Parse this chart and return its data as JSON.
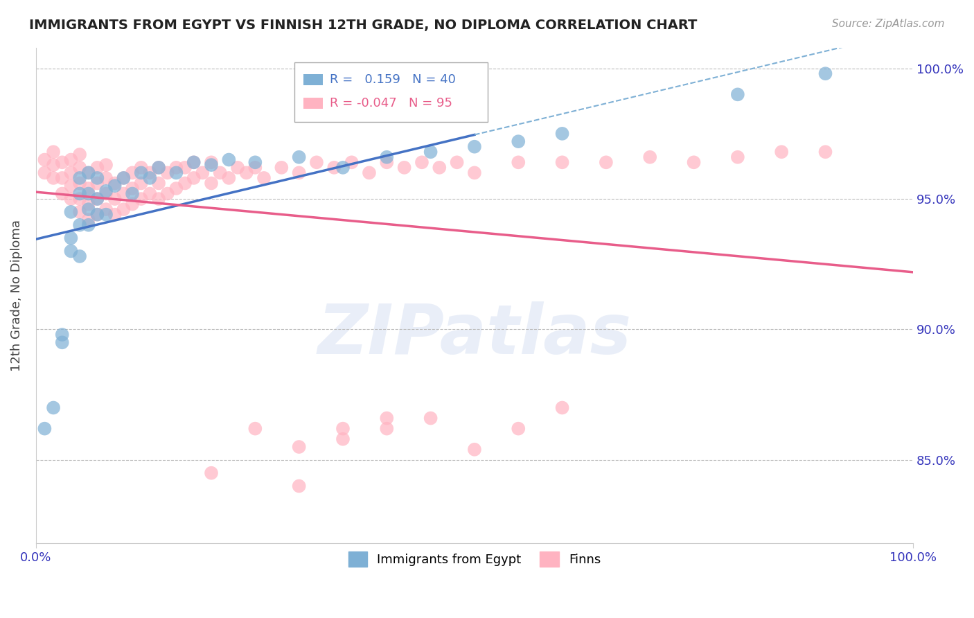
{
  "title": "IMMIGRANTS FROM EGYPT VS FINNISH 12TH GRADE, NO DIPLOMA CORRELATION CHART",
  "source": "Source: ZipAtlas.com",
  "ylabel": "12th Grade, No Diploma",
  "r_egypt": 0.159,
  "n_egypt": 40,
  "r_finns": -0.047,
  "n_finns": 95,
  "xmin": 0.0,
  "xmax": 1.0,
  "ymin": 0.818,
  "ymax": 1.008,
  "yticks": [
    0.85,
    0.9,
    0.95,
    1.0
  ],
  "ytick_labels": [
    "85.0%",
    "90.0%",
    "95.0%",
    "100.0%"
  ],
  "color_egypt": "#7EB0D5",
  "color_finns": "#FFB3C1",
  "line_color_egypt": "#4472C4",
  "line_color_finns": "#E85D8A",
  "dashed_line_color": "#7EB0D5",
  "background_color": "#FFFFFF",
  "grid_color": "#BBBBBB",
  "axis_label_color": "#3333BB",
  "egypt_x": [
    0.01,
    0.02,
    0.03,
    0.03,
    0.04,
    0.04,
    0.04,
    0.05,
    0.05,
    0.05,
    0.05,
    0.06,
    0.06,
    0.06,
    0.06,
    0.07,
    0.07,
    0.07,
    0.08,
    0.08,
    0.09,
    0.1,
    0.11,
    0.12,
    0.13,
    0.14,
    0.16,
    0.18,
    0.2,
    0.22,
    0.25,
    0.3,
    0.35,
    0.4,
    0.45,
    0.5,
    0.55,
    0.6,
    0.8,
    0.9
  ],
  "egypt_y": [
    0.862,
    0.87,
    0.895,
    0.898,
    0.93,
    0.935,
    0.945,
    0.928,
    0.94,
    0.952,
    0.958,
    0.94,
    0.946,
    0.952,
    0.96,
    0.944,
    0.95,
    0.958,
    0.944,
    0.953,
    0.955,
    0.958,
    0.952,
    0.96,
    0.958,
    0.962,
    0.96,
    0.964,
    0.963,
    0.965,
    0.964,
    0.966,
    0.962,
    0.966,
    0.968,
    0.97,
    0.972,
    0.975,
    0.99,
    0.998
  ],
  "finns_x": [
    0.01,
    0.01,
    0.02,
    0.02,
    0.02,
    0.03,
    0.03,
    0.03,
    0.04,
    0.04,
    0.04,
    0.04,
    0.05,
    0.05,
    0.05,
    0.05,
    0.05,
    0.06,
    0.06,
    0.06,
    0.06,
    0.07,
    0.07,
    0.07,
    0.07,
    0.08,
    0.08,
    0.08,
    0.08,
    0.09,
    0.09,
    0.09,
    0.1,
    0.1,
    0.1,
    0.11,
    0.11,
    0.11,
    0.12,
    0.12,
    0.12,
    0.13,
    0.13,
    0.14,
    0.14,
    0.14,
    0.15,
    0.15,
    0.16,
    0.16,
    0.17,
    0.17,
    0.18,
    0.18,
    0.19,
    0.2,
    0.2,
    0.21,
    0.22,
    0.23,
    0.24,
    0.25,
    0.26,
    0.28,
    0.3,
    0.32,
    0.34,
    0.36,
    0.38,
    0.4,
    0.42,
    0.44,
    0.46,
    0.48,
    0.5,
    0.55,
    0.6,
    0.65,
    0.7,
    0.75,
    0.8,
    0.85,
    0.9,
    0.3,
    0.35,
    0.4,
    0.45,
    0.5,
    0.55,
    0.6,
    0.2,
    0.25,
    0.3,
    0.35,
    0.4
  ],
  "finns_y": [
    0.96,
    0.965,
    0.958,
    0.963,
    0.968,
    0.952,
    0.958,
    0.964,
    0.95,
    0.955,
    0.96,
    0.965,
    0.945,
    0.95,
    0.956,
    0.962,
    0.967,
    0.942,
    0.948,
    0.954,
    0.96,
    0.944,
    0.95,
    0.956,
    0.962,
    0.946,
    0.952,
    0.958,
    0.963,
    0.944,
    0.95,
    0.956,
    0.946,
    0.952,
    0.958,
    0.948,
    0.954,
    0.96,
    0.95,
    0.956,
    0.962,
    0.952,
    0.96,
    0.95,
    0.956,
    0.962,
    0.952,
    0.96,
    0.954,
    0.962,
    0.956,
    0.962,
    0.958,
    0.964,
    0.96,
    0.956,
    0.964,
    0.96,
    0.958,
    0.962,
    0.96,
    0.962,
    0.958,
    0.962,
    0.96,
    0.964,
    0.962,
    0.964,
    0.96,
    0.964,
    0.962,
    0.964,
    0.962,
    0.964,
    0.96,
    0.964,
    0.964,
    0.964,
    0.966,
    0.964,
    0.966,
    0.968,
    0.968,
    0.84,
    0.858,
    0.862,
    0.866,
    0.854,
    0.862,
    0.87,
    0.845,
    0.862,
    0.855,
    0.862,
    0.866
  ],
  "legend_r_egypt_text": "R =   0.159   N = 40",
  "legend_r_finns_text": "R = -0.047   N = 95",
  "watermark": "ZIPatlas"
}
